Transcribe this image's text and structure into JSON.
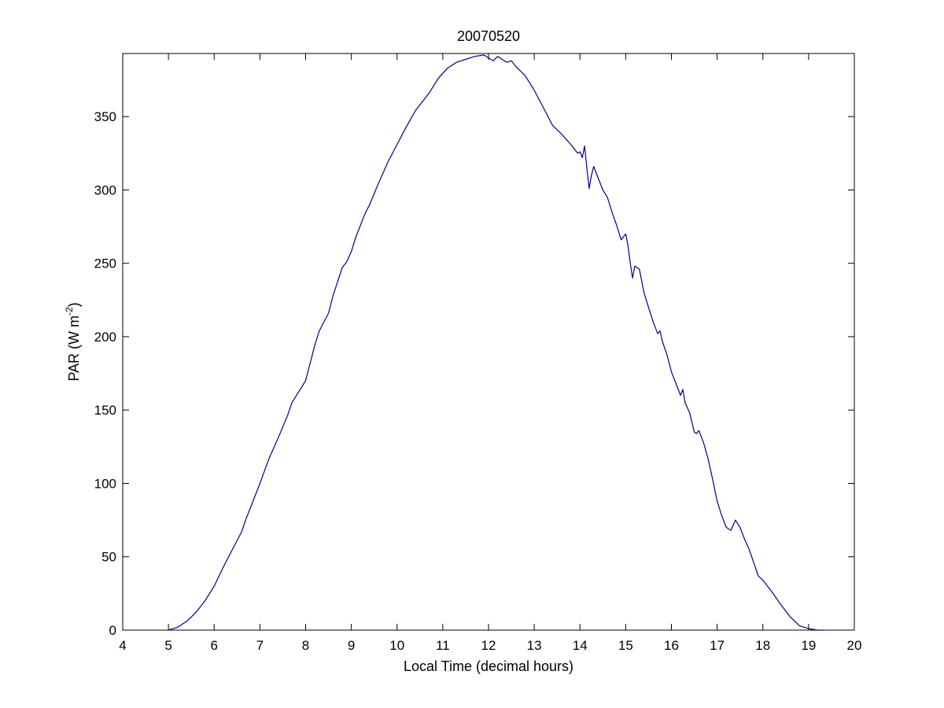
{
  "chart_data": {
    "type": "line",
    "title": "20070520",
    "xlabel": "Local Time (decimal hours)",
    "ylabel": {
      "main": "PAR (W m",
      "superscript": "-2",
      "close": ")"
    },
    "xlim": [
      4,
      20
    ],
    "ylim": [
      0,
      393
    ],
    "xticks": [
      4,
      5,
      6,
      7,
      8,
      9,
      10,
      11,
      12,
      13,
      14,
      15,
      16,
      17,
      18,
      19,
      20
    ],
    "yticks": [
      0,
      50,
      100,
      150,
      200,
      250,
      300,
      350
    ],
    "grid": false,
    "legend": "none",
    "series": [
      {
        "color": "#00008b",
        "x": [
          5.0,
          5.2,
          5.4,
          5.6,
          5.8,
          6.0,
          6.2,
          6.4,
          6.6,
          6.7,
          6.8,
          7.0,
          7.2,
          7.4,
          7.6,
          7.7,
          7.8,
          8.0,
          8.1,
          8.2,
          8.3,
          8.5,
          8.6,
          8.8,
          8.9,
          9.0,
          9.1,
          9.3,
          9.4,
          9.6,
          9.8,
          10.0,
          10.2,
          10.4,
          10.5,
          10.7,
          10.9,
          11.1,
          11.3,
          11.5,
          11.7,
          11.9,
          12.0,
          12.1,
          12.2,
          12.3,
          12.4,
          12.5,
          12.6,
          12.8,
          13.0,
          13.2,
          13.4,
          13.6,
          13.8,
          13.95,
          14.0,
          14.05,
          14.1,
          14.15,
          14.2,
          14.25,
          14.3,
          14.4,
          14.5,
          14.6,
          14.7,
          14.8,
          14.9,
          15.0,
          15.05,
          15.1,
          15.15,
          15.2,
          15.3,
          15.4,
          15.5,
          15.6,
          15.7,
          15.75,
          15.8,
          15.9,
          15.95,
          16.0,
          16.1,
          16.2,
          16.25,
          16.3,
          16.4,
          16.5,
          16.55,
          16.6,
          16.7,
          16.8,
          16.9,
          17.0,
          17.1,
          17.2,
          17.3,
          17.4,
          17.5,
          17.6,
          17.7,
          17.8,
          17.9,
          18.0,
          18.2,
          18.4,
          18.6,
          18.8,
          19.0,
          19.2,
          19.35
        ],
        "y": [
          0,
          2,
          6,
          12,
          20,
          30,
          43,
          55,
          67,
          76,
          84,
          100,
          117,
          131,
          146,
          155,
          160,
          170,
          182,
          194,
          204,
          216,
          228,
          247,
          251,
          258,
          268,
          284,
          290,
          305,
          319,
          331,
          343,
          354,
          358,
          366,
          376,
          383,
          387,
          389,
          391,
          392,
          390,
          388,
          391,
          389,
          387,
          388,
          384,
          378,
          368,
          356,
          344,
          338,
          331,
          325,
          326,
          322,
          330,
          315,
          301,
          310,
          316,
          308,
          300,
          295,
          285,
          276,
          266,
          270,
          262,
          250,
          240,
          248,
          246,
          230,
          220,
          210,
          202,
          204,
          197,
          188,
          182,
          176,
          168,
          160,
          164,
          155,
          148,
          135,
          134,
          136,
          128,
          117,
          103,
          88,
          78,
          70,
          68,
          75,
          70,
          62,
          55,
          46,
          37,
          34,
          26,
          17,
          9,
          3,
          1,
          0,
          0
        ]
      }
    ]
  }
}
